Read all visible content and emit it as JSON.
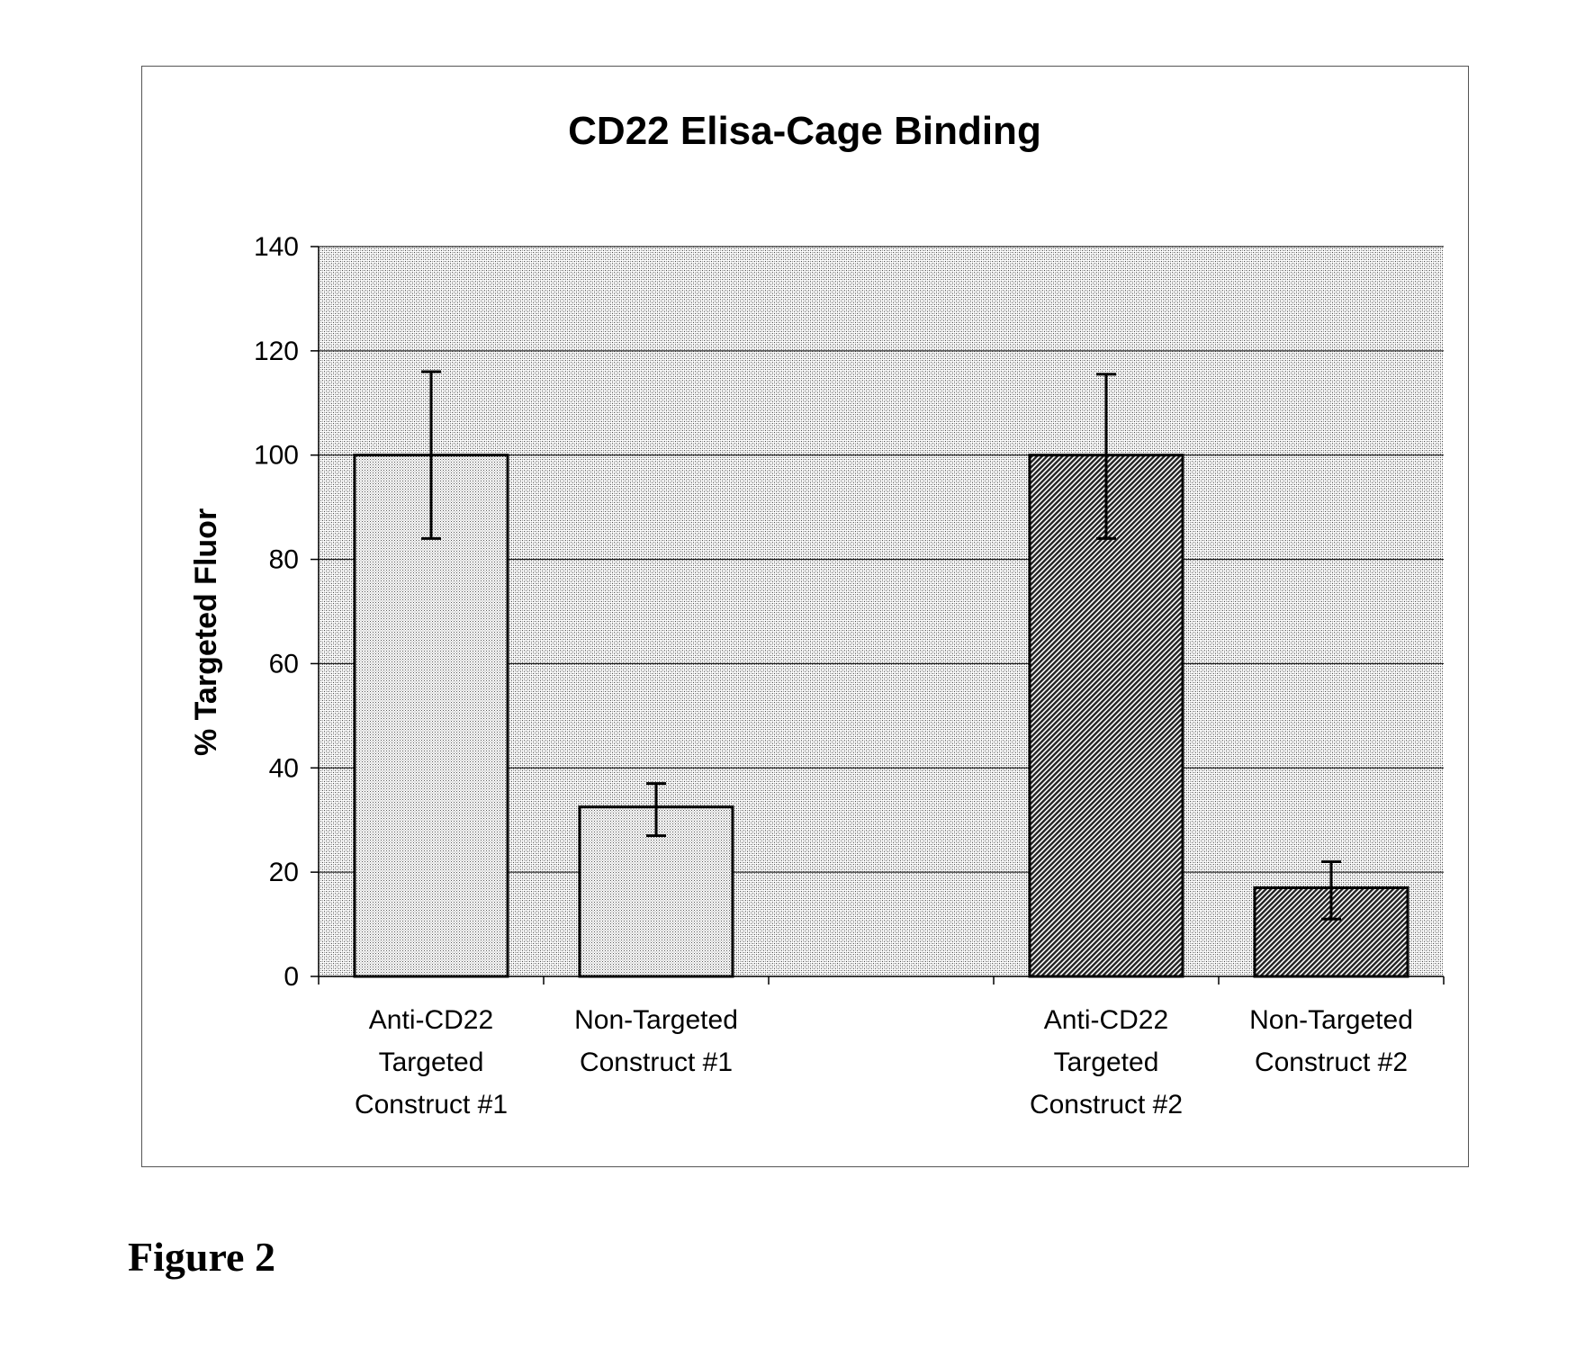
{
  "figure_caption": "Figure 2",
  "chart_data": {
    "type": "bar",
    "title": "CD22 Elisa-Cage Binding",
    "xlabel": "",
    "ylabel": "% Targeted Fluor",
    "ylim": [
      0,
      140
    ],
    "yticks": [
      0,
      20,
      40,
      60,
      80,
      100,
      120,
      140
    ],
    "grid": true,
    "legend": "none",
    "categories": [
      [
        "Anti-CD22",
        "Targeted",
        "Construct #1"
      ],
      [
        "Non-Targeted",
        "Construct #1"
      ],
      [],
      [
        "Anti-CD22",
        "Targeted",
        "Construct #2"
      ],
      [
        "Non-Targeted",
        "Construct #2"
      ]
    ],
    "values": [
      100,
      32.5,
      null,
      100,
      17
    ],
    "error_low": [
      84,
      27,
      null,
      84,
      11
    ],
    "error_high": [
      116,
      37,
      null,
      115.5,
      22
    ],
    "bar_fills": [
      "light-dot",
      "light-dot",
      null,
      "dark-diagonal",
      "dark-diagonal"
    ],
    "colors": {
      "plot_background": "#c8c8c8",
      "gridline": "#000000",
      "bar_outline": "#000000",
      "dark_bar": "#555555"
    }
  }
}
